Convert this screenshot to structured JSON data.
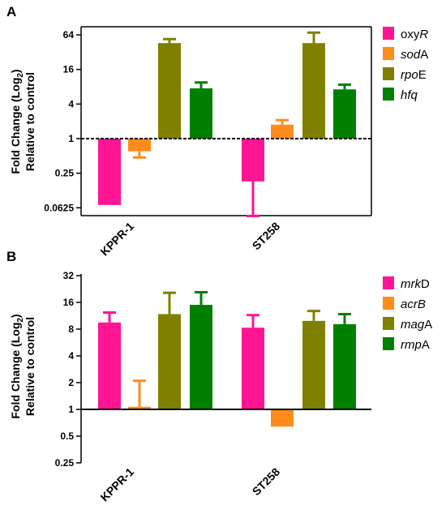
{
  "chart_data": [
    {
      "panel": "A",
      "type": "bar",
      "scale": "log2",
      "baseline": 1,
      "ylim": [
        0.0625,
        96
      ],
      "yticks": [
        "64",
        "16",
        "4",
        "1",
        "0.25",
        "0.0625"
      ],
      "ylabel_line1": "Fold Change (Log",
      "ylabel_sub": "2",
      "ylabel_line1_end": ")",
      "ylabel_line2": "Relative to control",
      "categories": [
        "KPPR-1",
        "ST258"
      ],
      "series": [
        {
          "name_parts": [
            {
              "t": "oxy",
              "i": false
            },
            {
              "t": "R",
              "i": true
            }
          ],
          "color": "#ff1493",
          "values": [
            0.07,
            0.18
          ],
          "errors": [
            null,
            0.045
          ]
        },
        {
          "name_parts": [
            {
              "t": "sod",
              "i": true
            },
            {
              "t": "A",
              "i": false
            }
          ],
          "color": "#ff8c1a",
          "values": [
            0.6,
            1.75
          ],
          "errors": [
            0.47,
            2.1
          ]
        },
        {
          "name_parts": [
            {
              "t": "rpo",
              "i": true
            },
            {
              "t": "E",
              "i": false
            }
          ],
          "color": "#808000",
          "values": [
            46,
            46
          ],
          "errors": [
            54,
            70
          ]
        },
        {
          "name_parts": [
            {
              "t": "hfq",
              "i": true
            }
          ],
          "color": "#008000",
          "values": [
            7.5,
            7.2
          ],
          "errors": [
            9.5,
            8.7
          ]
        }
      ]
    },
    {
      "panel": "B",
      "type": "bar",
      "scale": "log2",
      "baseline": 1,
      "ylim": [
        0.25,
        32
      ],
      "yticks": [
        "32",
        "16",
        "8",
        "4",
        "2",
        "1",
        "0.5",
        "0.25"
      ],
      "ylabel_line1": "Fold Change (Log",
      "ylabel_sub": "2",
      "ylabel_line1_end": ")",
      "ylabel_line2": "Relative to control",
      "categories": [
        "KPPR-1",
        "ST258"
      ],
      "series": [
        {
          "name_parts": [
            {
              "t": "mrk",
              "i": true
            },
            {
              "t": "D",
              "i": false
            }
          ],
          "color": "#ff1493",
          "values": [
            9.5,
            8.3
          ],
          "errors": [
            12.3,
            11.5
          ]
        },
        {
          "name_parts": [
            {
              "t": "acr",
              "i": true
            },
            {
              "t": "B",
              "i": true
            }
          ],
          "color": "#ff8c1a",
          "values": [
            1.07,
            0.64
          ],
          "errors": [
            2.1,
            null
          ]
        },
        {
          "name_parts": [
            {
              "t": "mag",
              "i": true
            },
            {
              "t": "A",
              "i": false
            }
          ],
          "color": "#808000",
          "values": [
            11.8,
            9.9
          ],
          "errors": [
            20.5,
            12.8
          ]
        },
        {
          "name_parts": [
            {
              "t": "rmp",
              "i": true
            },
            {
              "t": "A",
              "i": false
            }
          ],
          "color": "#008000",
          "values": [
            15.0,
            9.1
          ],
          "errors": [
            20.8,
            11.8
          ]
        }
      ]
    }
  ]
}
